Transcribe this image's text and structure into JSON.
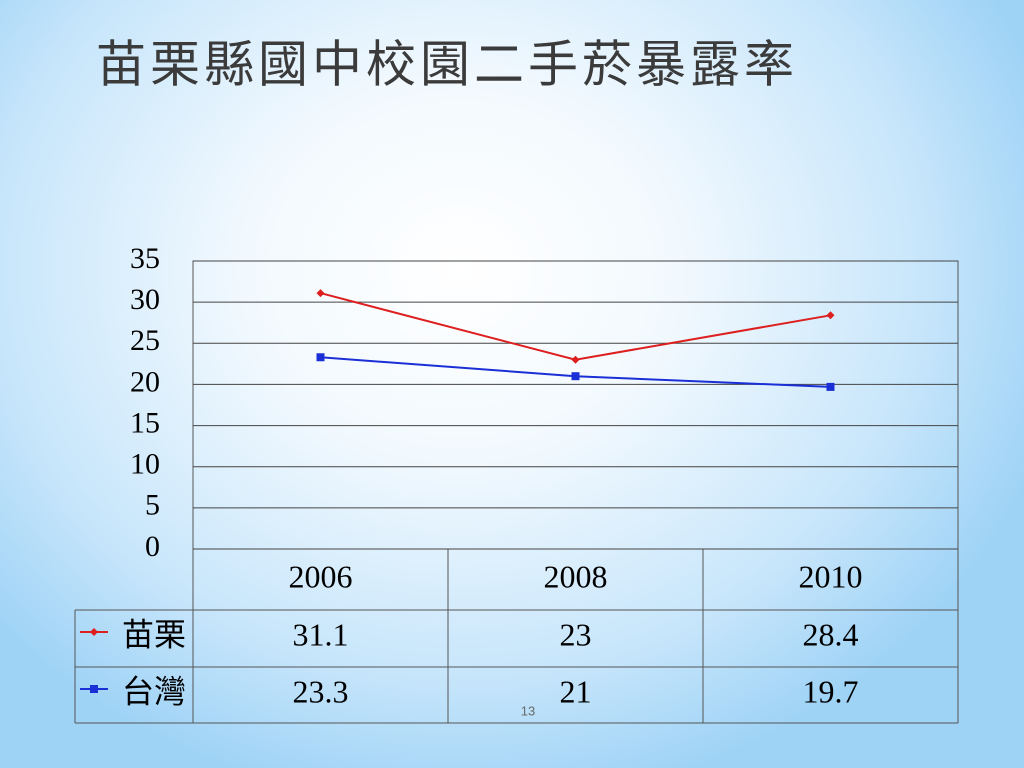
{
  "chart_data": {
    "type": "line",
    "title": "苗栗縣國中校園二手菸暴露率",
    "categories": [
      "2006",
      "2008",
      "2010"
    ],
    "series": [
      {
        "name": "苗栗",
        "color": "#dd1f1f",
        "values": [
          31.1,
          23,
          28.4
        ]
      },
      {
        "name": "台灣",
        "color": "#1a2fd6",
        "values": [
          23.3,
          21,
          19.7
        ]
      }
    ],
    "ylim": [
      0,
      35
    ],
    "yticks": [
      0,
      5,
      10,
      15,
      20,
      25,
      30,
      35
    ],
    "grid": true
  },
  "page_number": 13
}
